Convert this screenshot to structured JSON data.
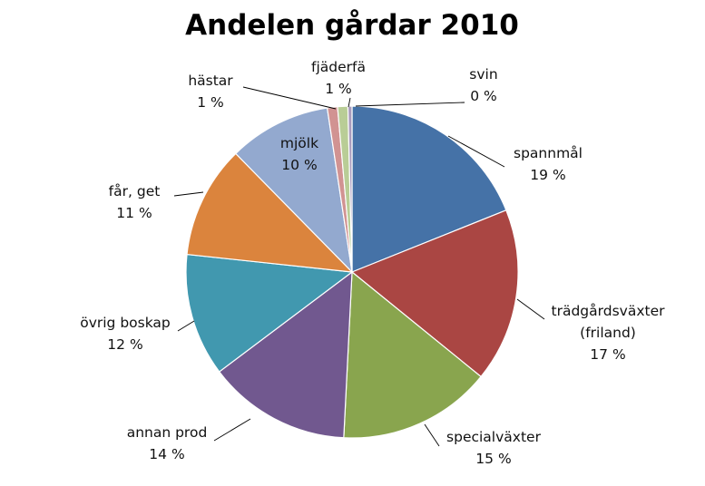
{
  "chart_data": {
    "type": "pie",
    "title": "Andelen gårdar 2010",
    "legend": "none",
    "slices": [
      {
        "name": "spannmål",
        "name2": "",
        "value": 19,
        "value_label": "19 %",
        "color": "#4572A7"
      },
      {
        "name": "trädgårdsväxter",
        "name2": "(friland)",
        "value": 17,
        "value_label": "17 %",
        "color": "#AA4643"
      },
      {
        "name": "specialväxter",
        "name2": "",
        "value": 15,
        "value_label": "15 %",
        "color": "#89A54E"
      },
      {
        "name": "annan prod",
        "name2": "",
        "value": 14,
        "value_label": "14 %",
        "color": "#71588F"
      },
      {
        "name": "övrig boskap",
        "name2": "",
        "value": 12,
        "value_label": "12 %",
        "color": "#4198AF"
      },
      {
        "name": "får, get",
        "name2": "",
        "value": 11,
        "value_label": "11 %",
        "color": "#DB843D"
      },
      {
        "name": "mjölk",
        "name2": "",
        "value": 10,
        "value_label": "10 %",
        "color": "#93A9CF"
      },
      {
        "name": "hästar",
        "name2": "",
        "value": 1,
        "value_label": "1 %",
        "color": "#D19392"
      },
      {
        "name": "fjäderfä",
        "name2": "",
        "value": 1,
        "value_label": "1 %",
        "color": "#B9CD96"
      },
      {
        "name": "svin",
        "name2": "",
        "value": 0.4,
        "value_label": "0 %",
        "color": "#A99BBD"
      }
    ]
  }
}
